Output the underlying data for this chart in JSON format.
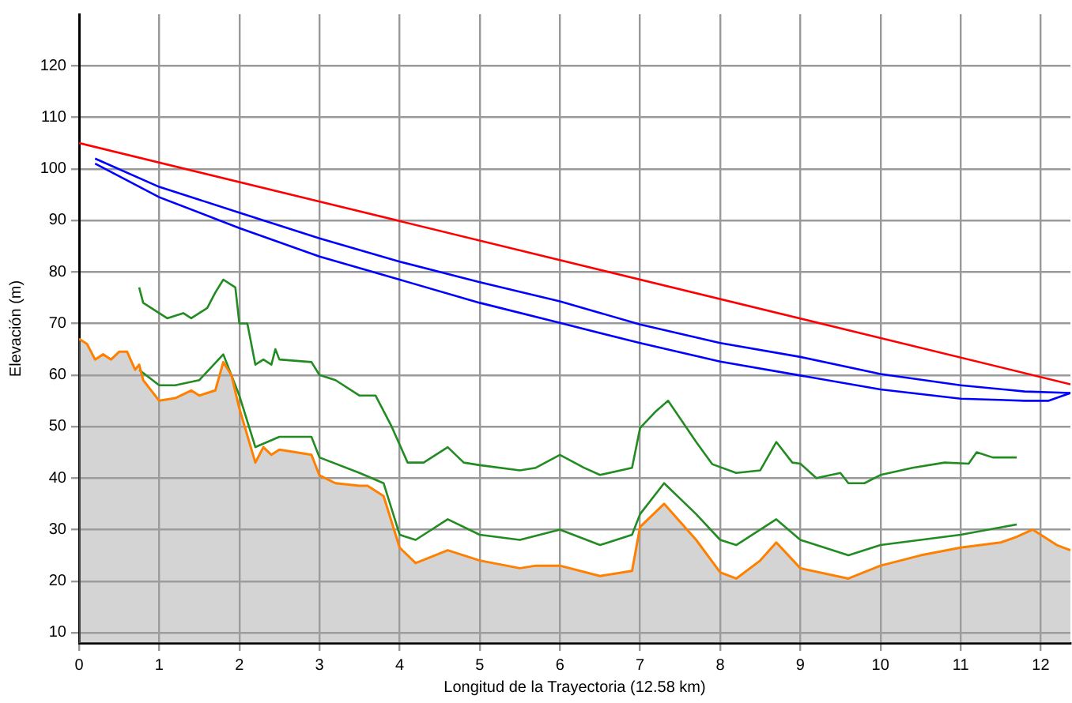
{
  "chart_data": {
    "type": "line",
    "xlabel": "Longitud de la Trayectoria (12.58 km)",
    "ylabel": "Elevación (m)",
    "xlim": [
      0,
      12.37
    ],
    "xticks": [
      0,
      1,
      2,
      3,
      4,
      5,
      6,
      7,
      8,
      9,
      10,
      11,
      12
    ],
    "ylim": [
      8,
      130
    ],
    "yticks": [
      10,
      20,
      30,
      40,
      50,
      60,
      70,
      80,
      90,
      100,
      110,
      120
    ],
    "grid": true,
    "legend": false,
    "marker": "none",
    "line_style": "solid",
    "series": [
      {
        "type": "area",
        "color": "#ff8000",
        "x": [
          0,
          0.1,
          0.2,
          0.3,
          0.4,
          0.5,
          0.6,
          0.7,
          0.75,
          0.8,
          1,
          1.2,
          1.4,
          1.5,
          1.7,
          1.8,
          1.9,
          2,
          2.2,
          2.3,
          2.4,
          2.5,
          2.9,
          3,
          3.2,
          3.5,
          3.6,
          3.8,
          4,
          4.2,
          4.6,
          5,
          5.5,
          5.7,
          6,
          6.5,
          6.9,
          7,
          7.3,
          7.7,
          8,
          8.2,
          8.5,
          8.7,
          9,
          9.6,
          10,
          10.5,
          11,
          11.5,
          11.7,
          11.9,
          12,
          12.2,
          12.37
        ],
        "values": [
          67,
          66,
          63,
          64,
          63,
          64.5,
          64.5,
          61,
          62,
          59,
          55,
          55.5,
          57,
          56,
          57,
          62.5,
          60,
          53.5,
          43,
          46,
          44.5,
          45.5,
          44.5,
          40.5,
          39,
          38.5,
          38.5,
          36.5,
          26.5,
          23.5,
          26,
          24,
          22.5,
          23,
          23,
          21,
          22,
          30.5,
          35,
          28,
          21.7,
          20.5,
          24,
          27.5,
          22.5,
          20.5,
          23,
          25,
          26.5,
          27.5,
          28.6,
          30,
          29,
          27,
          26
        ]
      },
      {
        "type": "line",
        "color": "#228b22",
        "x": [
          0.75,
          0.8,
          1,
          1.1,
          1.3,
          1.4,
          1.5,
          1.6,
          1.7,
          1.8,
          1.95,
          2,
          2.1,
          2.2,
          2.3,
          2.4,
          2.45,
          2.5,
          2.9,
          3,
          3.2,
          3.5,
          3.7,
          3.9,
          4.1,
          4.3,
          4.6,
          4.8,
          5,
          5.5,
          5.7,
          6,
          6.3,
          6.5,
          6.9,
          7,
          7.2,
          7.35,
          7.7,
          7.9,
          8.2,
          8.5,
          8.7,
          8.9,
          9,
          9.2,
          9.5,
          9.6,
          9.8,
          10,
          10.4,
          10.8,
          11.1,
          11.2,
          11.4,
          11.7
        ],
        "values": [
          77,
          74,
          72,
          71,
          72,
          71,
          72,
          73,
          76,
          78.5,
          77,
          70,
          70,
          62,
          63,
          62,
          65,
          63,
          62.5,
          60,
          59,
          56,
          56,
          50,
          43,
          43,
          46,
          43,
          42.5,
          41.5,
          42,
          44.5,
          42,
          40.6,
          42,
          49.7,
          53,
          55,
          47,
          42.7,
          41,
          41.5,
          47,
          43,
          42.8,
          40,
          41,
          39,
          39,
          40.6,
          42,
          43,
          42.8,
          45,
          44,
          44
        ]
      },
      {
        "type": "line",
        "color": "#228b22",
        "x": [
          0.75,
          1,
          1.2,
          1.5,
          1.8,
          2,
          2.2,
          2.5,
          2.9,
          3,
          3.5,
          3.8,
          4,
          4.2,
          4.6,
          5,
          5.5,
          6,
          6.5,
          6.9,
          7,
          7.3,
          7.7,
          8,
          8.2,
          8.7,
          9,
          9.6,
          10,
          11,
          11.7
        ],
        "values": [
          61,
          58,
          58,
          59,
          64,
          56,
          46,
          48,
          48,
          44,
          41,
          39,
          29,
          28,
          32,
          29,
          28,
          30,
          27,
          29,
          33,
          39,
          33,
          28,
          27,
          32,
          28,
          25,
          27,
          29,
          31
        ]
      },
      {
        "type": "line",
        "color": "#ff0000",
        "x": [
          0,
          12.37
        ],
        "values": [
          105,
          58.2
        ]
      },
      {
        "type": "line",
        "color": "#0000ff",
        "x": [
          0.2,
          1,
          2,
          3,
          4,
          5,
          6,
          7,
          8,
          9,
          10,
          11,
          11.8,
          12.37
        ],
        "values": [
          102,
          96.5,
          91.5,
          86.5,
          82,
          78,
          74.3,
          69.8,
          66.2,
          63.5,
          60.2,
          58,
          56.8,
          56.5
        ]
      },
      {
        "type": "line",
        "color": "#0000ff",
        "x": [
          0.2,
          1,
          2,
          3,
          4,
          5,
          6,
          7,
          8,
          9,
          10,
          11,
          11.8,
          12.1,
          12.37
        ],
        "values": [
          101,
          94.5,
          88.5,
          83,
          78.5,
          74,
          70.1,
          66.2,
          62.6,
          59.9,
          57.2,
          55.4,
          55,
          55,
          56.5
        ]
      }
    ]
  }
}
